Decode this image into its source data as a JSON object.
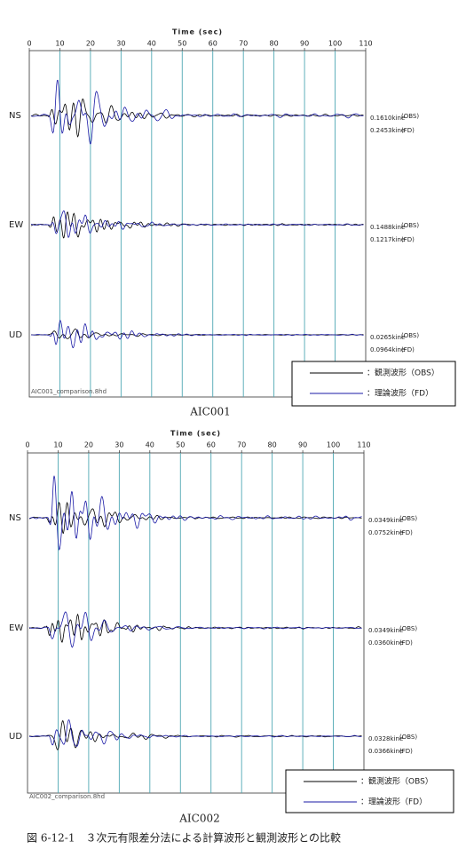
{
  "panels": [
    {
      "xlabel": "Time (sec)",
      "xlim": [
        0,
        110
      ],
      "xticks": [
        0,
        10,
        20,
        30,
        40,
        50,
        60,
        70,
        80,
        90,
        100,
        110
      ],
      "traces": [
        {
          "name": "NS",
          "obs": "0.1610kine",
          "obs_tag": "(OBS)",
          "fd": "0.2453kine",
          "fd_tag": "(FD)"
        },
        {
          "name": "EW",
          "obs": "0.1488kine",
          "obs_tag": "(OBS)",
          "fd": "0.1217kine",
          "fd_tag": "(FD)"
        },
        {
          "name": "UD",
          "obs": "0.0265kine",
          "obs_tag": "(OBS)",
          "fd": "0.0964kine",
          "fd_tag": "(FD)"
        }
      ],
      "legend": [
        {
          "name": "：観測波形（OBS）",
          "color": "#000000"
        },
        {
          "name": "：理論波形（FD）",
          "color": "#1a1aa6"
        }
      ],
      "file": "AIC001_comparison.8hd",
      "caption": "AIC001"
    },
    {
      "xlabel": "Time (sec)",
      "xlim": [
        0,
        110
      ],
      "xticks": [
        0,
        10,
        20,
        30,
        40,
        50,
        60,
        70,
        80,
        90,
        100,
        110
      ],
      "traces": [
        {
          "name": "NS",
          "obs": "0.0349kine",
          "obs_tag": "(OBS)",
          "fd": "0.0752kine",
          "fd_tag": "(FD)"
        },
        {
          "name": "EW",
          "obs": "0.0349kine",
          "obs_tag": "(OBS)",
          "fd": "0.0360kine",
          "fd_tag": "(FD)"
        },
        {
          "name": "UD",
          "obs": "0.0328kine",
          "obs_tag": "(OBS)",
          "fd": "0.0366kine",
          "fd_tag": "(FD)"
        }
      ],
      "legend": [
        {
          "name": "：観測波形（OBS）",
          "color": "#000000"
        },
        {
          "name": "：理論波形（FD）",
          "color": "#1a1aa6"
        }
      ],
      "file": "AIC002_comparison.8hd",
      "caption": "AIC002"
    }
  ],
  "figure_caption": "図 6-12-1　３次元有限差分法による計算波形と観測波形との比較"
}
